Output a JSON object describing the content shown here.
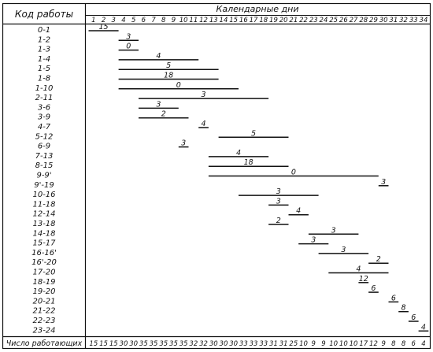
{
  "chart_data": {
    "type": "gantt",
    "header": {
      "left": "Код работы",
      "right": "Календарные дни"
    },
    "days": [
      "1",
      "2",
      "3",
      "4",
      "5",
      "6",
      "7",
      "8",
      "9",
      "10",
      "11",
      "12",
      "13",
      "14",
      "15",
      "16",
      "17",
      "18",
      "19",
      "20",
      "21",
      "22",
      "23",
      "24",
      "25",
      "26",
      "27",
      "28",
      "29",
      "30",
      "31",
      "32",
      "33",
      "34"
    ],
    "tasks": [
      {
        "code": "0-1",
        "start": 1,
        "end": 3,
        "workers": "15"
      },
      {
        "code": "1-2",
        "start": 4,
        "end": 5,
        "workers": "3"
      },
      {
        "code": "1-3",
        "start": 4,
        "end": 5,
        "workers": "0"
      },
      {
        "code": "1-4",
        "start": 4,
        "end": 11,
        "workers": "4"
      },
      {
        "code": "1-5",
        "start": 4,
        "end": 13,
        "workers": "5"
      },
      {
        "code": "1-8",
        "start": 4,
        "end": 13,
        "workers": "18"
      },
      {
        "code": "1-10",
        "start": 4,
        "end": 15,
        "workers": "0"
      },
      {
        "code": "2-11",
        "start": 6,
        "end": 18,
        "workers": "3"
      },
      {
        "code": "3-6",
        "start": 6,
        "end": 9,
        "workers": "3"
      },
      {
        "code": "3-9",
        "start": 6,
        "end": 10,
        "workers": "2"
      },
      {
        "code": "4-7",
        "start": 12,
        "end": 12,
        "workers": "4"
      },
      {
        "code": "5-12",
        "start": 14,
        "end": 20,
        "workers": "5"
      },
      {
        "code": "6-9",
        "start": 10,
        "end": 10,
        "workers": "3"
      },
      {
        "code": "7-13",
        "start": 13,
        "end": 18,
        "workers": "4"
      },
      {
        "code": "8-15",
        "start": 13,
        "end": 20,
        "workers": "18"
      },
      {
        "code": "9-9'",
        "start": 13,
        "end": 29,
        "workers": "0"
      },
      {
        "code": "9'-19",
        "start": 30,
        "end": 30,
        "workers": "3"
      },
      {
        "code": "10-16",
        "start": 16,
        "end": 23,
        "workers": "3"
      },
      {
        "code": "11-18",
        "start": 19,
        "end": 20,
        "workers": "3"
      },
      {
        "code": "12-14",
        "start": 21,
        "end": 22,
        "workers": "4"
      },
      {
        "code": "13-18",
        "start": 19,
        "end": 20,
        "workers": "2"
      },
      {
        "code": "14-18",
        "start": 23,
        "end": 27,
        "workers": "3"
      },
      {
        "code": "15-17",
        "start": 22,
        "end": 24,
        "workers": "3"
      },
      {
        "code": "16-16'",
        "start": 24,
        "end": 28,
        "workers": "3"
      },
      {
        "code": "16'-20",
        "start": 29,
        "end": 30,
        "workers": "2"
      },
      {
        "code": "17-20",
        "start": 25,
        "end": 30,
        "workers": "4"
      },
      {
        "code": "18-19",
        "start": 28,
        "end": 28,
        "workers": "12"
      },
      {
        "code": "19-20",
        "start": 29,
        "end": 29,
        "workers": "6"
      },
      {
        "code": "20-21",
        "start": 31,
        "end": 31,
        "workers": "6"
      },
      {
        "code": "21-22",
        "start": 32,
        "end": 32,
        "workers": "8"
      },
      {
        "code": "22-23",
        "start": 33,
        "end": 33,
        "workers": "6"
      },
      {
        "code": "23-24",
        "start": 34,
        "end": 34,
        "workers": "4"
      }
    ],
    "footer_label": "Число работающих",
    "workers_per_day": [
      "15",
      "15",
      "15",
      "30",
      "30",
      "35",
      "35",
      "35",
      "35",
      "35",
      "32",
      "32",
      "30",
      "30",
      "30",
      "33",
      "33",
      "33",
      "31",
      "31",
      "25",
      "10",
      "9",
      "9",
      "10",
      "10",
      "10",
      "17",
      "12",
      "9",
      "8",
      "8",
      "6",
      "4"
    ]
  }
}
